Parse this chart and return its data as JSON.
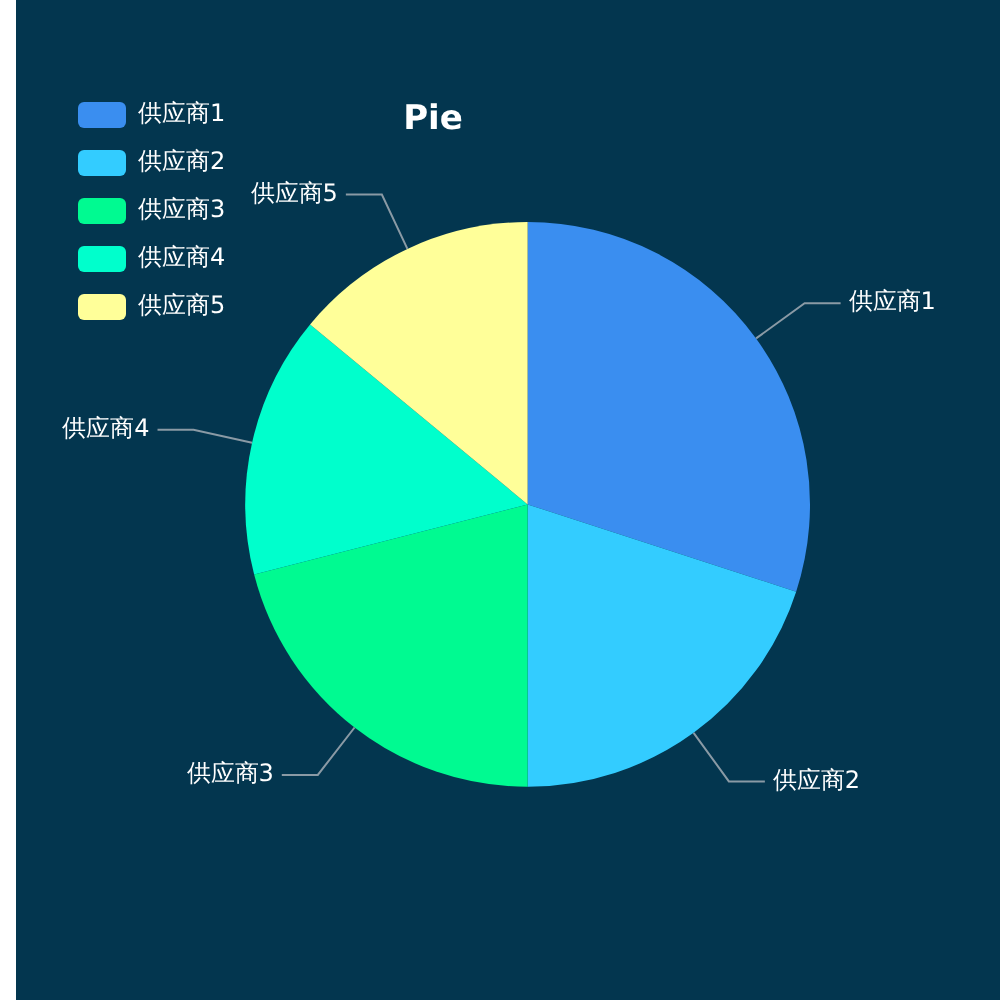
{
  "chart_data": {
    "type": "pie",
    "title": "Pie",
    "categories": [
      "供应商1",
      "供应商2",
      "供应商3",
      "供应商4",
      "供应商5"
    ],
    "values": [
      30,
      20,
      21,
      15,
      14
    ],
    "colors": [
      "#3a8ef0",
      "#33ccff",
      "#00fa91",
      "#00ffcc",
      "#ffff99"
    ],
    "legend": "top left"
  }
}
